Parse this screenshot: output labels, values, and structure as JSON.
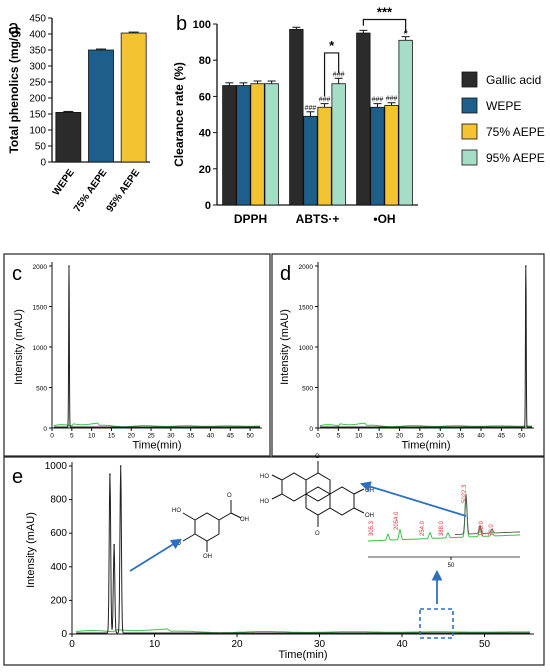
{
  "chart_data": [
    {
      "panel": "a",
      "type": "bar",
      "ylabel": "Total phenolics (mg/g)",
      "categories": [
        "WEPE",
        "75% AEPE",
        "95% AEPE"
      ],
      "values": [
        155,
        350,
        403
      ],
      "errors": [
        3,
        3,
        3
      ],
      "colors": [
        "#2b2b2b",
        "#1d5f8a",
        "#f3c332"
      ],
      "ylim": [
        0,
        450
      ],
      "yticks": [
        "0",
        "50",
        "100",
        "150",
        "200",
        "250",
        "300",
        "350",
        "400",
        "450"
      ]
    },
    {
      "panel": "b",
      "type": "bar",
      "ylabel": "Clearance rate (%)",
      "categories": [
        "DPPH",
        "ABTS·+",
        "•OH"
      ],
      "ylim": [
        0,
        100
      ],
      "yticks": [
        "0",
        "20",
        "40",
        "60",
        "80",
        "100"
      ],
      "legend_position": "right",
      "series": [
        {
          "name": "Gallic acid",
          "color": "#2b2b2b",
          "values": [
            66,
            97,
            95
          ],
          "errors": [
            1.5,
            1.2,
            1.5
          ],
          "marks": [
            "",
            "",
            ""
          ]
        },
        {
          "name": "WEPE",
          "color": "#1d5f8a",
          "values": [
            66,
            49,
            54
          ],
          "errors": [
            1.5,
            2.5,
            2
          ],
          "marks": [
            "",
            "###",
            "###"
          ]
        },
        {
          "name": "75% AEPE",
          "color": "#f3c332",
          "values": [
            67,
            54,
            55
          ],
          "errors": [
            1.5,
            2,
            1.5
          ],
          "marks": [
            "",
            "###",
            "###"
          ]
        },
        {
          "name": "95% AEPE",
          "color": "#a6ddc6",
          "values": [
            67,
            67,
            91
          ],
          "errors": [
            1.5,
            3,
            2
          ],
          "marks": [
            "",
            "###",
            "#"
          ]
        }
      ],
      "significance": [
        {
          "category": "ABTS·+",
          "label": "*"
        },
        {
          "category": "•OH",
          "label": "***"
        }
      ]
    },
    {
      "panel": "c",
      "type": "line",
      "xlabel": "Time(min)",
      "ylabel": "Intensity  (mAU)",
      "xlim": [
        0,
        53
      ],
      "ylim": [
        0,
        2000
      ],
      "xticks": [
        "0",
        "5",
        "10",
        "15",
        "20",
        "25",
        "30",
        "35",
        "40",
        "45",
        "50"
      ],
      "yticks": [
        "0",
        "500",
        "1000",
        "1500",
        "2000"
      ],
      "peaks": [
        {
          "time": 4.3,
          "height": 2000
        }
      ]
    },
    {
      "panel": "d",
      "type": "line",
      "xlabel": "Time(min)",
      "ylabel": "Intensity  (mAU)",
      "xlim": [
        0,
        53
      ],
      "ylim": [
        0,
        2000
      ],
      "xticks": [
        "0",
        "5",
        "10",
        "15",
        "20",
        "25",
        "30",
        "35",
        "40",
        "45",
        "50"
      ],
      "yticks": [
        "0",
        "500",
        "1000",
        "1500",
        "2000"
      ],
      "peaks": [
        {
          "time": 51,
          "height": 2000
        }
      ]
    },
    {
      "panel": "e",
      "type": "line",
      "xlabel": "Time(min)",
      "ylabel": "Intensity  (mAU)",
      "xlim": [
        0,
        56
      ],
      "ylim": [
        0,
        1000
      ],
      "xticks": [
        "0",
        "10",
        "20",
        "30",
        "40",
        "50"
      ],
      "yticks": [
        "0",
        "200",
        "400",
        "600",
        "800",
        "1000"
      ],
      "peaks": [
        {
          "time": 4.6,
          "height": 950
        },
        {
          "time": 5.1,
          "height": 530
        },
        {
          "time": 5.9,
          "height": 1000
        }
      ],
      "inset_peak_labels": [
        "305.3",
        "2054.0",
        "254.0",
        "388.0",
        "5022.3",
        "105.0",
        "70.0"
      ],
      "inset_xtick": "50"
    }
  ],
  "panel_labels": {
    "a": "a",
    "b": "b",
    "c": "c",
    "d": "d",
    "e": "e"
  }
}
